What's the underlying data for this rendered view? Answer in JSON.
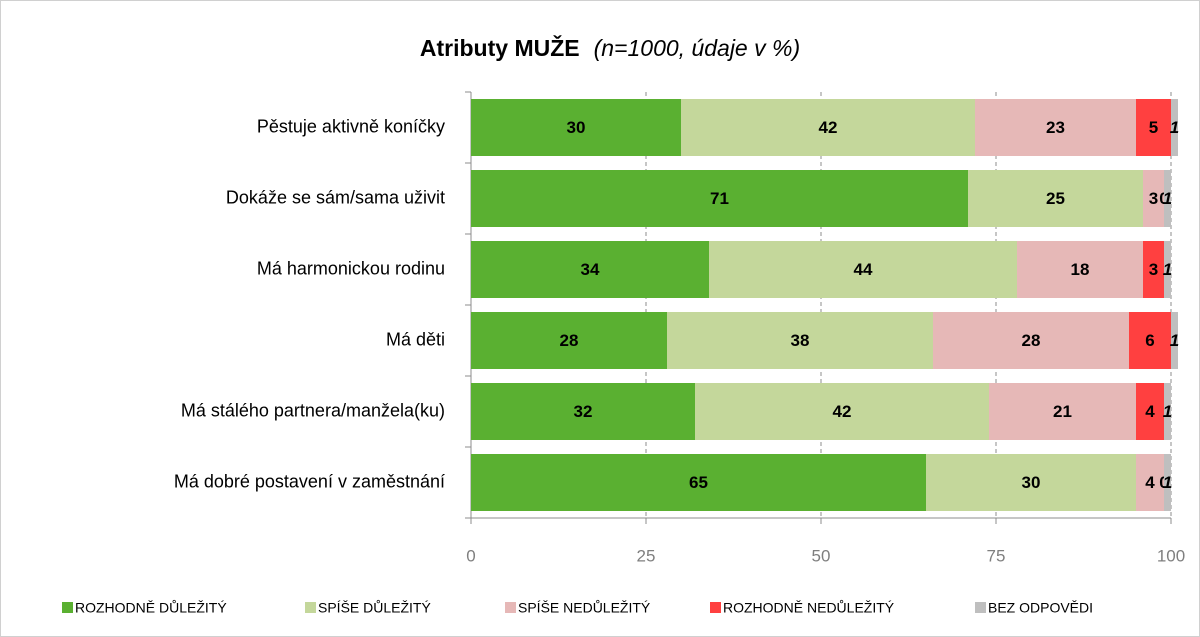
{
  "chart_data": {
    "type": "stacked_barh",
    "title": "Atributy MUŽE",
    "subtitle": "(n=1000, údaje v %)",
    "categories": [
      "Pěstuje aktivně koníčky",
      "Dokáže se sám/sama  uživit",
      "Má harmonickou rodinu",
      "Má děti",
      "Má stálého partnera/manžela(ku)",
      "Má dobré postavení v zaměstnání"
    ],
    "series": [
      {
        "name": "ROZHODNĚ DŮLEŽITÝ",
        "color": "#5ab031",
        "values": [
          30,
          71,
          34,
          28,
          32,
          65
        ]
      },
      {
        "name": "SPÍŠE DŮLEŽITÝ",
        "color": "#c4d79b",
        "values": [
          42,
          25,
          44,
          38,
          42,
          30
        ]
      },
      {
        "name": "SPÍŠE NEDŮLEŽITÝ",
        "color": "#e6b8b7",
        "values": [
          23,
          3,
          18,
          28,
          21,
          4
        ]
      },
      {
        "name": "ROZHODNĚ NEDŮLEŽITÝ",
        "color": "#ff4040",
        "values": [
          5,
          0,
          3,
          6,
          4,
          0
        ]
      },
      {
        "name": "BEZ ODPOVĚDI",
        "color": "#bfbfbf",
        "values": [
          1,
          1,
          1,
          1,
          1,
          1
        ]
      }
    ],
    "xlim": [
      0,
      100
    ],
    "xticks": [
      0,
      25,
      50,
      75,
      100
    ],
    "grid": true,
    "legend": "bottom"
  }
}
